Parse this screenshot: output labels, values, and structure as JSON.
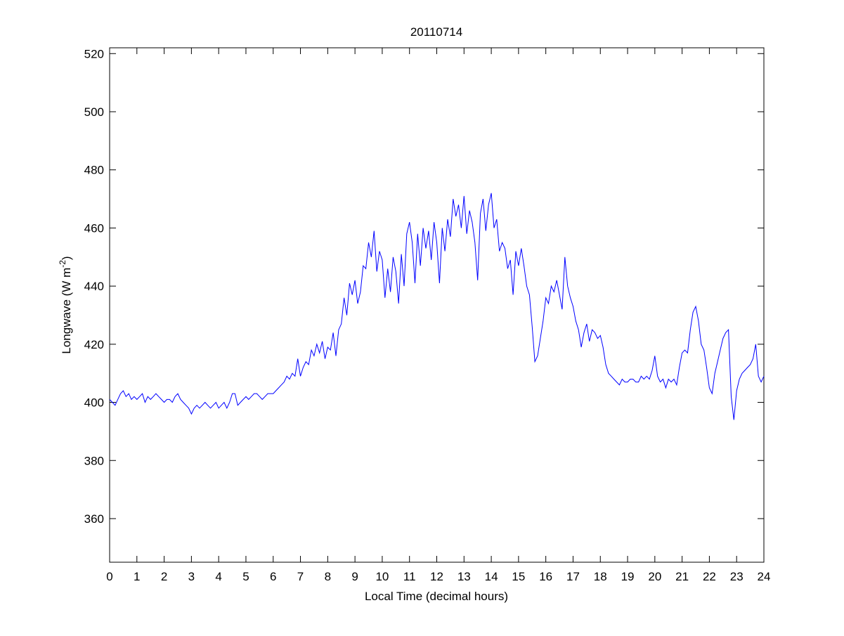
{
  "chart_data": {
    "type": "line",
    "title": "20110714",
    "xlabel": "Local Time (decimal hours)",
    "ylabel": "Longwave (W m",
    "ylabel_superscript": "-2",
    "ylabel_suffix": ")",
    "xlim": [
      0,
      24
    ],
    "ylim": [
      345,
      522
    ],
    "xticks": [
      0,
      1,
      2,
      3,
      4,
      5,
      6,
      7,
      8,
      9,
      10,
      11,
      12,
      13,
      14,
      15,
      16,
      17,
      18,
      19,
      20,
      21,
      22,
      23,
      24
    ],
    "yticks": [
      360,
      380,
      400,
      420,
      440,
      460,
      480,
      500,
      520
    ],
    "grid": false,
    "line_color": "#0000ff",
    "x_step": 0.1,
    "series": [
      {
        "name": "Longwave",
        "values": [
          401,
          400,
          399,
          401,
          403,
          404,
          402,
          403,
          401,
          402,
          401,
          402,
          403,
          400,
          402,
          401,
          402,
          403,
          402,
          401,
          400,
          401,
          401,
          400,
          402,
          403,
          401,
          400,
          399,
          398,
          396,
          398,
          399,
          398,
          399,
          400,
          399,
          398,
          399,
          400,
          398,
          399,
          400,
          398,
          400,
          403,
          403,
          399,
          400,
          401,
          402,
          401,
          402,
          403,
          403,
          402,
          401,
          402,
          403,
          403,
          403,
          404,
          405,
          406,
          407,
          409,
          408,
          410,
          409,
          415,
          409,
          412,
          414,
          413,
          418,
          416,
          420,
          417,
          421,
          415,
          419,
          418,
          424,
          416,
          425,
          427,
          436,
          430,
          441,
          437,
          442,
          434,
          438,
          447,
          446,
          455,
          450,
          459,
          445,
          452,
          449,
          436,
          446,
          438,
          450,
          445,
          434,
          451,
          440,
          458,
          462,
          455,
          441,
          458,
          447,
          460,
          453,
          459,
          449,
          462,
          455,
          441,
          460,
          452,
          463,
          457,
          470,
          464,
          468,
          460,
          471,
          458,
          466,
          462,
          455,
          442,
          465,
          470,
          459,
          468,
          472,
          460,
          463,
          452,
          455,
          453,
          446,
          449,
          437,
          452,
          447,
          453,
          447,
          440,
          437,
          426,
          414,
          416,
          422,
          428,
          436,
          434,
          440,
          438,
          442,
          437,
          432,
          450,
          440,
          436,
          433,
          428,
          425,
          419,
          424,
          427,
          421,
          425,
          424,
          422,
          423,
          419,
          413,
          410,
          409,
          408,
          407,
          406,
          408,
          407,
          407,
          408,
          408,
          407,
          407,
          409,
          408,
          409,
          408,
          411,
          416,
          409,
          407,
          408,
          405,
          408,
          407,
          408,
          406,
          412,
          417,
          418,
          417,
          425,
          431,
          433,
          428,
          420,
          418,
          412,
          405,
          403,
          410,
          414,
          418,
          422,
          424,
          425,
          402,
          394,
          404,
          408,
          410,
          411,
          412,
          413,
          415,
          420,
          409,
          407,
          409
        ]
      }
    ]
  }
}
